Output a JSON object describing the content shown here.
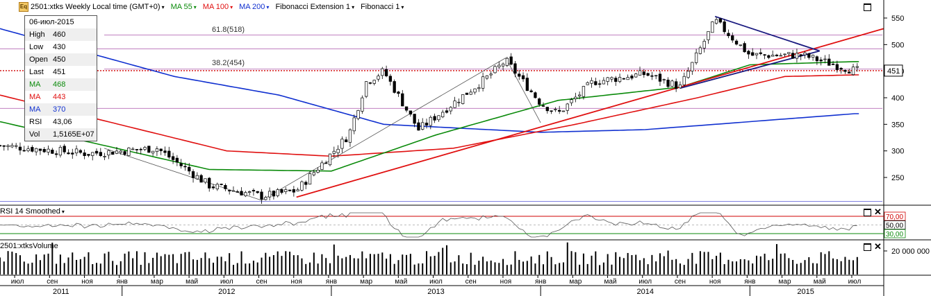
{
  "toolbar": {
    "eq_icon": "Eq",
    "symbol": "2501:xtks Weekly Local time (GMT+0)",
    "ma55": "MA 55",
    "ma100": "MA 100",
    "ma200": "MA 200",
    "fibo_ext": "Fibonacci Extension 1",
    "fibo": "Fibonacci 1",
    "arrow": "▾"
  },
  "colors": {
    "ma55": "#0a8a0a",
    "ma100": "#e01010",
    "ma200": "#1030d0",
    "up_candle": "#ffffff",
    "down_candle": "#000000",
    "fib_line": "#c080c0"
  },
  "info_panel": {
    "date": "06-июл-2015",
    "rows": [
      {
        "k": "High",
        "v": "460",
        "color": "#000000"
      },
      {
        "k": "Low",
        "v": "430",
        "color": "#000000"
      },
      {
        "k": "Open",
        "v": "450",
        "color": "#000000"
      },
      {
        "k": "Last",
        "v": "451",
        "color": "#000000"
      },
      {
        "k": "MA",
        "v": "468",
        "color": "#0a8a0a"
      },
      {
        "k": "MA",
        "v": "443",
        "color": "#e01010"
      },
      {
        "k": "MA",
        "v": "370",
        "color": "#1030d0"
      },
      {
        "k": "RSI",
        "v": "43,06",
        "color": "#000000"
      },
      {
        "k": "Vol",
        "v": "1,5165E+07",
        "color": "#000000"
      }
    ]
  },
  "fib_labels": {
    "level_618": "61.8(518)",
    "level_382": "38.2(454)"
  },
  "rsi_pane": {
    "title": "RSI 14 Smoothed",
    "levels": [
      "70,00",
      "50,00",
      "30,00"
    ]
  },
  "volume_pane": {
    "title": "2501:xtksVolume",
    "tick": "20 000 000"
  },
  "price_axis": {
    "ticks": [
      "550",
      "500",
      "450",
      "400",
      "350",
      "300",
      "250"
    ],
    "last_price": "451"
  },
  "time_axis": {
    "months": [
      "июл",
      "сен",
      "ноя",
      "янв",
      "мар",
      "май",
      "июл",
      "сен",
      "ноя",
      "янв",
      "мар",
      "май",
      "июл",
      "сен",
      "ноя",
      "янв",
      "мар",
      "май",
      "июл",
      "сен",
      "ноя",
      "янв",
      "мар",
      "май",
      "июл"
    ],
    "years": [
      "2011",
      "2012",
      "2013",
      "2014",
      "2015"
    ]
  },
  "chart_data": {
    "type": "candlestick",
    "title": "2501:xtks Weekly",
    "ylim": [
      200,
      570
    ],
    "y_ticks": [
      250,
      300,
      350,
      400,
      450,
      500,
      550
    ],
    "last_price": 451,
    "fib_levels": [
      {
        "label": "61.8(518)",
        "value": 518
      },
      {
        "label": "38.2(454)",
        "value": 454
      }
    ],
    "x_range": [
      "2011-06",
      "2015-07"
    ],
    "anchors": [
      {
        "date": "2011-06",
        "close": 310
      },
      {
        "date": "2011-11",
        "close": 295
      },
      {
        "date": "2012-03",
        "close": 305
      },
      {
        "date": "2012-06",
        "close": 235
      },
      {
        "date": "2012-09",
        "close": 215
      },
      {
        "date": "2012-11",
        "close": 225
      },
      {
        "date": "2013-02",
        "close": 330
      },
      {
        "date": "2013-03",
        "close": 430
      },
      {
        "date": "2013-04",
        "close": 450
      },
      {
        "date": "2013-06",
        "close": 340
      },
      {
        "date": "2013-08",
        "close": 390
      },
      {
        "date": "2013-10",
        "close": 440
      },
      {
        "date": "2013-11",
        "close": 470
      },
      {
        "date": "2014-01",
        "close": 390
      },
      {
        "date": "2014-02",
        "close": 370
      },
      {
        "date": "2014-04",
        "close": 430
      },
      {
        "date": "2014-07",
        "close": 445
      },
      {
        "date": "2014-09",
        "close": 420
      },
      {
        "date": "2014-11",
        "close": 545
      },
      {
        "date": "2015-01",
        "close": 480
      },
      {
        "date": "2015-04",
        "close": 480
      },
      {
        "date": "2015-07",
        "close": 451
      }
    ],
    "ma_anchors": {
      "ma55": [
        {
          "date": "2011-06",
          "v": 355
        },
        {
          "date": "2012-06",
          "v": 265
        },
        {
          "date": "2013-01",
          "v": 262
        },
        {
          "date": "2013-07",
          "v": 330
        },
        {
          "date": "2014-02",
          "v": 395
        },
        {
          "date": "2014-09",
          "v": 420
        },
        {
          "date": "2015-01",
          "v": 462
        },
        {
          "date": "2015-07",
          "v": 468
        }
      ],
      "ma100": [
        {
          "date": "2011-06",
          "v": 405
        },
        {
          "date": "2012-07",
          "v": 300
        },
        {
          "date": "2013-01",
          "v": 290
        },
        {
          "date": "2013-08",
          "v": 305
        },
        {
          "date": "2014-03",
          "v": 350
        },
        {
          "date": "2014-10",
          "v": 400
        },
        {
          "date": "2015-03",
          "v": 440
        },
        {
          "date": "2015-07",
          "v": 443
        }
      ],
      "ma200": [
        {
          "date": "2011-06",
          "v": 530
        },
        {
          "date": "2012-04",
          "v": 440
        },
        {
          "date": "2012-10",
          "v": 405
        },
        {
          "date": "2013-04",
          "v": 350
        },
        {
          "date": "2014-01",
          "v": 335
        },
        {
          "date": "2014-07",
          "v": 340
        },
        {
          "date": "2015-07",
          "v": 370
        }
      ]
    },
    "rsi": {
      "levels": [
        70,
        50,
        30
      ],
      "last": 43.06
    },
    "volume": {
      "tick": 20000000,
      "last": 15165000
    }
  }
}
